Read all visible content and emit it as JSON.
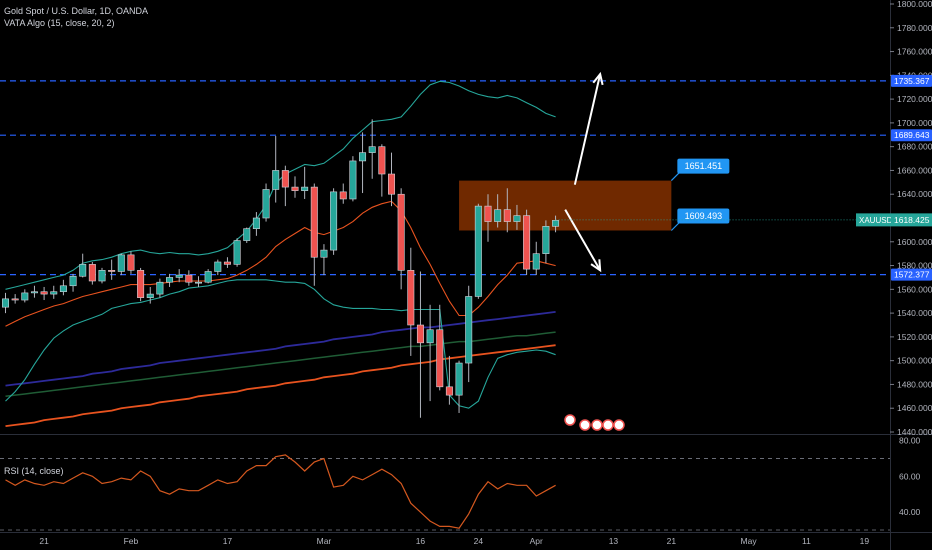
{
  "chart_data": [
    {
      "type": "candlestick",
      "title": "Gold Spot / U.S. Dollar, 1D, OANDA",
      "indicator": "VATA Algo (15, close, 20, 2)",
      "symbol": "XAUUSD",
      "last_price": "1618.425",
      "ylim": [
        1440,
        1800
      ],
      "y_ticks": [
        "1800.000",
        "1780.000",
        "1760.000",
        "1740.000",
        "1720.000",
        "1700.000",
        "1680.000",
        "1660.000",
        "1640.000",
        "1620.000",
        "1600.000",
        "1580.000",
        "1560.000",
        "1540.000",
        "1520.000",
        "1500.000",
        "1480.000",
        "1460.000",
        "1440.000"
      ],
      "x_labels": [
        "21",
        "Feb",
        "17",
        "Mar",
        "16",
        "24",
        "Apr",
        "13",
        "21",
        "May",
        "11",
        "19"
      ],
      "x_label_dates": [
        "2020-01-21",
        "2020-02-01",
        "2020-02-17",
        "2020-03-01",
        "2020-03-16",
        "2020-03-24",
        "2020-04-01",
        "2020-04-13",
        "2020-04-21",
        "2020-05-01",
        "2020-05-11",
        "2020-05-19"
      ],
      "candles": [
        {
          "date": "2020-01-15",
          "o": 1545,
          "h": 1557,
          "l": 1540,
          "c": 1552
        },
        {
          "date": "2020-01-16",
          "o": 1552,
          "h": 1556,
          "l": 1548,
          "c": 1551
        },
        {
          "date": "2020-01-17",
          "o": 1551,
          "h": 1560,
          "l": 1549,
          "c": 1557
        },
        {
          "date": "2020-01-20",
          "o": 1557,
          "h": 1563,
          "l": 1553,
          "c": 1558
        },
        {
          "date": "2020-01-21",
          "o": 1558,
          "h": 1562,
          "l": 1551,
          "c": 1556
        },
        {
          "date": "2020-01-22",
          "o": 1556,
          "h": 1563,
          "l": 1552,
          "c": 1558
        },
        {
          "date": "2020-01-23",
          "o": 1558,
          "h": 1568,
          "l": 1555,
          "c": 1563
        },
        {
          "date": "2020-01-24",
          "o": 1563,
          "h": 1573,
          "l": 1558,
          "c": 1571
        },
        {
          "date": "2020-01-27",
          "o": 1571,
          "h": 1590,
          "l": 1570,
          "c": 1581
        },
        {
          "date": "2020-01-28",
          "o": 1581,
          "h": 1583,
          "l": 1564,
          "c": 1567
        },
        {
          "date": "2020-01-29",
          "o": 1567,
          "h": 1578,
          "l": 1565,
          "c": 1576
        },
        {
          "date": "2020-01-30",
          "o": 1576,
          "h": 1585,
          "l": 1568,
          "c": 1575
        },
        {
          "date": "2020-01-31",
          "o": 1575,
          "h": 1590,
          "l": 1572,
          "c": 1589
        },
        {
          "date": "2020-02-03",
          "o": 1589,
          "h": 1592,
          "l": 1573,
          "c": 1576
        },
        {
          "date": "2020-02-04",
          "o": 1576,
          "h": 1578,
          "l": 1550,
          "c": 1553
        },
        {
          "date": "2020-02-05",
          "o": 1553,
          "h": 1562,
          "l": 1548,
          "c": 1556
        },
        {
          "date": "2020-02-06",
          "o": 1556,
          "h": 1569,
          "l": 1553,
          "c": 1566
        },
        {
          "date": "2020-02-07",
          "o": 1566,
          "h": 1573,
          "l": 1562,
          "c": 1570
        },
        {
          "date": "2020-02-10",
          "o": 1570,
          "h": 1577,
          "l": 1566,
          "c": 1572
        },
        {
          "date": "2020-02-11",
          "o": 1572,
          "h": 1576,
          "l": 1563,
          "c": 1566
        },
        {
          "date": "2020-02-12",
          "o": 1566,
          "h": 1571,
          "l": 1562,
          "c": 1566
        },
        {
          "date": "2020-02-13",
          "o": 1566,
          "h": 1577,
          "l": 1565,
          "c": 1575
        },
        {
          "date": "2020-02-14",
          "o": 1575,
          "h": 1585,
          "l": 1572,
          "c": 1583
        },
        {
          "date": "2020-02-17",
          "o": 1583,
          "h": 1587,
          "l": 1578,
          "c": 1581
        },
        {
          "date": "2020-02-18",
          "o": 1581,
          "h": 1603,
          "l": 1579,
          "c": 1601
        },
        {
          "date": "2020-02-19",
          "o": 1601,
          "h": 1612,
          "l": 1599,
          "c": 1611
        },
        {
          "date": "2020-02-20",
          "o": 1611,
          "h": 1625,
          "l": 1605,
          "c": 1620
        },
        {
          "date": "2020-02-21",
          "o": 1620,
          "h": 1649,
          "l": 1617,
          "c": 1644
        },
        {
          "date": "2020-02-24",
          "o": 1644,
          "h": 1689,
          "l": 1633,
          "c": 1660
        },
        {
          "date": "2020-02-25",
          "o": 1660,
          "h": 1664,
          "l": 1630,
          "c": 1646
        },
        {
          "date": "2020-02-26",
          "o": 1646,
          "h": 1655,
          "l": 1637,
          "c": 1643
        },
        {
          "date": "2020-02-27",
          "o": 1643,
          "h": 1663,
          "l": 1636,
          "c": 1646
        },
        {
          "date": "2020-02-28",
          "o": 1646,
          "h": 1649,
          "l": 1563,
          "c": 1587
        },
        {
          "date": "2020-03-02",
          "o": 1587,
          "h": 1598,
          "l": 1572,
          "c": 1593
        },
        {
          "date": "2020-03-03",
          "o": 1593,
          "h": 1645,
          "l": 1589,
          "c": 1642
        },
        {
          "date": "2020-03-04",
          "o": 1642,
          "h": 1649,
          "l": 1632,
          "c": 1636
        },
        {
          "date": "2020-03-05",
          "o": 1636,
          "h": 1672,
          "l": 1634,
          "c": 1668
        },
        {
          "date": "2020-03-06",
          "o": 1668,
          "h": 1692,
          "l": 1641,
          "c": 1675
        },
        {
          "date": "2020-03-09",
          "o": 1675,
          "h": 1703,
          "l": 1653,
          "c": 1680
        },
        {
          "date": "2020-03-10",
          "o": 1680,
          "h": 1682,
          "l": 1638,
          "c": 1657
        },
        {
          "date": "2020-03-11",
          "o": 1657,
          "h": 1675,
          "l": 1630,
          "c": 1640
        },
        {
          "date": "2020-03-12",
          "o": 1640,
          "h": 1645,
          "l": 1560,
          "c": 1576
        },
        {
          "date": "2020-03-13",
          "o": 1576,
          "h": 1595,
          "l": 1504,
          "c": 1530
        },
        {
          "date": "2020-03-16",
          "o": 1530,
          "h": 1575,
          "l": 1452,
          "c": 1515
        },
        {
          "date": "2020-03-17",
          "o": 1515,
          "h": 1547,
          "l": 1466,
          "c": 1526
        },
        {
          "date": "2020-03-18",
          "o": 1526,
          "h": 1547,
          "l": 1475,
          "c": 1478
        },
        {
          "date": "2020-03-19",
          "o": 1478,
          "h": 1504,
          "l": 1463,
          "c": 1471
        },
        {
          "date": "2020-03-20",
          "o": 1471,
          "h": 1500,
          "l": 1456,
          "c": 1498
        },
        {
          "date": "2020-03-23",
          "o": 1498,
          "h": 1563,
          "l": 1482,
          "c": 1554
        },
        {
          "date": "2020-03-24",
          "o": 1554,
          "h": 1632,
          "l": 1552,
          "c": 1630
        },
        {
          "date": "2020-03-25",
          "o": 1630,
          "h": 1640,
          "l": 1600,
          "c": 1617
        },
        {
          "date": "2020-03-26",
          "o": 1617,
          "h": 1640,
          "l": 1612,
          "c": 1627
        },
        {
          "date": "2020-03-27",
          "o": 1627,
          "h": 1645,
          "l": 1608,
          "c": 1617
        },
        {
          "date": "2020-03-30",
          "o": 1617,
          "h": 1631,
          "l": 1610,
          "c": 1622
        },
        {
          "date": "2020-03-31",
          "o": 1622,
          "h": 1627,
          "l": 1572,
          "c": 1577
        },
        {
          "date": "2020-04-01",
          "o": 1577,
          "h": 1600,
          "l": 1572,
          "c": 1590
        },
        {
          "date": "2020-04-02",
          "o": 1590,
          "h": 1618,
          "l": 1582,
          "c": 1613
        },
        {
          "date": "2020-04-03",
          "o": 1613,
          "h": 1622,
          "l": 1608,
          "c": 1618
        }
      ],
      "mid_band": [
        1548,
        1549,
        1550,
        1551,
        1553,
        1555,
        1557,
        1560,
        1562,
        1563,
        1565,
        1566,
        1568,
        1569,
        1568,
        1568,
        1568,
        1568,
        1569,
        1569,
        1569,
        1570,
        1571,
        1572,
        1574,
        1577,
        1580,
        1585,
        1592,
        1597,
        1602,
        1607,
        1608,
        1611,
        1616,
        1620,
        1626,
        1633,
        1639,
        1643,
        1646,
        1643,
        1636,
        1627,
        1617,
        1605,
        1594,
        1585,
        1584,
        1590,
        1596,
        1602,
        1606,
        1608,
        1606,
        1604,
        1601,
        1599
      ],
      "upper_band": [
        1560,
        1562,
        1564,
        1566,
        1568,
        1570,
        1572,
        1576,
        1582,
        1584,
        1585,
        1587,
        1590,
        1592,
        1593,
        1591,
        1590,
        1591,
        1590,
        1590,
        1589,
        1590,
        1592,
        1595,
        1602,
        1609,
        1619,
        1631,
        1649,
        1657,
        1661,
        1665,
        1664,
        1666,
        1672,
        1678,
        1687,
        1694,
        1701,
        1702,
        1703,
        1705,
        1714,
        1724,
        1732,
        1735,
        1734,
        1731,
        1727,
        1724,
        1722,
        1721,
        1723,
        1721,
        1717,
        1713,
        1708,
        1705
      ],
      "lower_band": [
        1466,
        1474,
        1484,
        1497,
        1509,
        1519,
        1525,
        1530,
        1533,
        1536,
        1539,
        1544,
        1546,
        1548,
        1549,
        1551,
        1553,
        1556,
        1558,
        1561,
        1562,
        1563,
        1565,
        1567,
        1568,
        1568,
        1568,
        1568,
        1567,
        1566,
        1566,
        1565,
        1560,
        1552,
        1547,
        1545,
        1544,
        1544,
        1544,
        1543,
        1543,
        1542,
        1543,
        1543,
        1543,
        1543,
        1471,
        1462,
        1460,
        1466,
        1486,
        1502,
        1505,
        1507,
        1508,
        1509,
        1508,
        1505
      ],
      "ma_navy": [
        1479,
        1480,
        1481,
        1482,
        1483,
        1484,
        1485,
        1486,
        1487,
        1489,
        1490,
        1491,
        1493,
        1494,
        1495,
        1496,
        1498,
        1499,
        1500,
        1501,
        1502,
        1503,
        1504,
        1505,
        1506,
        1507,
        1508,
        1509,
        1510,
        1512,
        1513,
        1514,
        1515,
        1516,
        1518,
        1519,
        1520,
        1521,
        1522,
        1524,
        1525,
        1526,
        1527,
        1528,
        1528,
        1529,
        1530,
        1531,
        1532,
        1533,
        1534,
        1535,
        1536,
        1537,
        1538,
        1539,
        1540,
        1541
      ],
      "ma_green": [
        1470,
        1471,
        1472,
        1473,
        1474,
        1475,
        1476,
        1477,
        1478,
        1479,
        1480,
        1481,
        1482,
        1483,
        1484,
        1485,
        1486,
        1487,
        1488,
        1489,
        1490,
        1491,
        1492,
        1493,
        1494,
        1495,
        1496,
        1497,
        1498,
        1499,
        1500,
        1501,
        1502,
        1503,
        1504,
        1505,
        1506,
        1507,
        1508,
        1509,
        1510,
        1511,
        1512,
        1512,
        1513,
        1514,
        1515,
        1516,
        1516,
        1517,
        1518,
        1519,
        1520,
        1521,
        1521,
        1522,
        1523,
        1524
      ],
      "ma_orange_long": [
        1445,
        1446,
        1447,
        1448,
        1450,
        1451,
        1452,
        1453,
        1455,
        1456,
        1457,
        1458,
        1460,
        1461,
        1462,
        1463,
        1465,
        1466,
        1467,
        1468,
        1470,
        1471,
        1472,
        1473,
        1474,
        1476,
        1477,
        1478,
        1479,
        1481,
        1482,
        1483,
        1484,
        1486,
        1487,
        1488,
        1489,
        1491,
        1492,
        1493,
        1494,
        1496,
        1497,
        1498,
        1499,
        1501,
        1502,
        1503,
        1504,
        1505,
        1506,
        1507,
        1508,
        1509,
        1510,
        1511,
        1512,
        1513
      ],
      "ma_orange_fast": [
        1529,
        1533,
        1537,
        1540,
        1543,
        1546,
        1548,
        1551,
        1554,
        1556,
        1558,
        1560,
        1562,
        1564,
        1564,
        1564,
        1565,
        1566,
        1567,
        1567,
        1567,
        1567,
        1568,
        1569,
        1572,
        1576,
        1581,
        1587,
        1596,
        1602,
        1607,
        1612,
        1608,
        1606,
        1609,
        1612,
        1617,
        1624,
        1629,
        1632,
        1634,
        1626,
        1612,
        1595,
        1581,
        1565,
        1550,
        1538,
        1538,
        1545,
        1554,
        1564,
        1572,
        1582,
        1583,
        1584,
        1582,
        1580
      ],
      "h_levels": [
        {
          "value": 1735.367,
          "label": "1735.367"
        },
        {
          "value": 1689.643,
          "label": "1689.643"
        },
        {
          "value": 1572.377,
          "label": "1572.377"
        }
      ],
      "zone": {
        "from_date": "2020-03-20",
        "to_date": "2020-04-21",
        "top": 1651.451,
        "bottom": 1609.493
      },
      "callouts": [
        {
          "value": 1651.451,
          "label": "1651.451"
        },
        {
          "value": 1609.493,
          "label": "1609.493"
        }
      ],
      "arrows": [
        {
          "from_date": "2020-04-07",
          "from_price": 1648,
          "to_date": "2020-04-09",
          "to_price": 1741
        },
        {
          "from_date": "2020-04-06",
          "from_price": 1627,
          "to_date": "2020-04-09",
          "to_price": 1576
        }
      ],
      "colors": {
        "up": "#26a69a",
        "down": "#ef5350",
        "zone": "#7a2d00",
        "level": "#2962ff",
        "band": "#26a69a",
        "ma_navy": "#2d2a9a",
        "ma_green": "#1f5c35",
        "ma_orange": "#e8531f",
        "rsi": "#d4581f"
      }
    },
    {
      "type": "line",
      "title": "RSI (14, close)",
      "ylim": [
        30,
        82
      ],
      "y_ticks": [
        "80.00",
        "60.00",
        "40.00"
      ],
      "levels": [
        70,
        30
      ],
      "values": [
        58,
        55,
        58,
        56,
        55,
        57,
        56,
        59,
        62,
        60,
        56,
        57,
        59,
        58,
        63,
        60,
        52,
        50,
        53,
        52,
        52,
        55,
        58,
        56,
        57,
        63,
        66,
        66,
        71,
        72,
        68,
        63,
        68,
        70,
        54,
        55,
        60,
        58,
        61,
        64,
        61,
        56,
        45,
        40,
        35,
        32,
        32,
        31,
        39,
        50,
        57,
        53,
        56,
        55,
        55,
        49,
        52,
        55
      ]
    }
  ]
}
